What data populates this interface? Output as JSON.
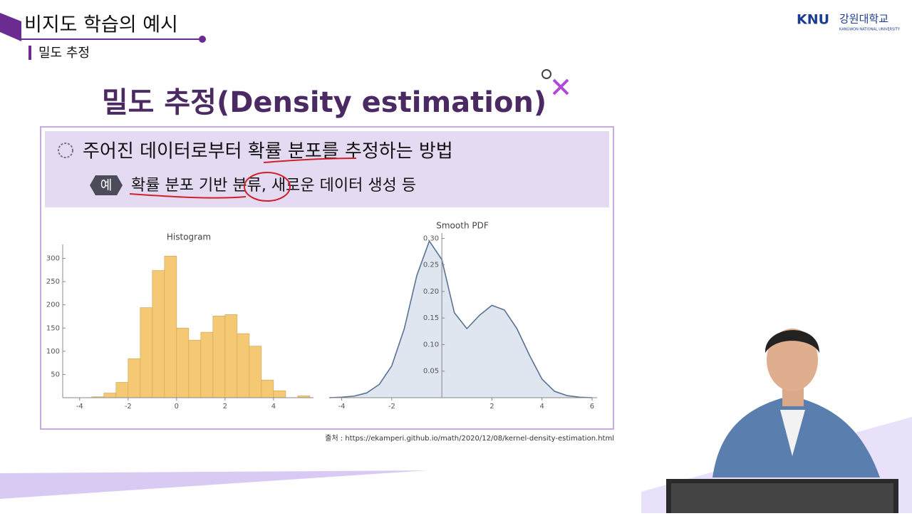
{
  "header": {
    "title": "비지도 학습의 예시",
    "subtitle": "밀도 추정"
  },
  "logo": {
    "mark": "KNU",
    "name": "강원대학교",
    "english": "KANGWON NATIONAL UNIVERSITY"
  },
  "slide": {
    "heading": "밀도 추정(Density estimation)",
    "bullet": "주어진 데이터로부터 확률 분포를 추정하는 방법",
    "example_badge": "예",
    "example": "확률 분포 기반 분류, 새로운 데이터 생성 등",
    "source": "출처 : https://ekamperi.github.io/math/2020/12/08/kernel-density-estimation.html"
  },
  "chart_data": [
    {
      "type": "histogram",
      "title": "Histogram",
      "color": "#f5c873",
      "bins": [
        -3.5,
        -3,
        -2.5,
        -2,
        -1.5,
        -1,
        -0.5,
        0,
        0.5,
        1,
        1.5,
        2,
        2.5,
        3,
        3.5,
        4,
        4.5,
        5,
        5.5
      ],
      "values": [
        2,
        10,
        33,
        84,
        194,
        274,
        305,
        150,
        124,
        141,
        176,
        179,
        138,
        111,
        38,
        15,
        0,
        4
      ],
      "xlim": [
        -4.7,
        5.65
      ],
      "xticks": [
        -4,
        -2,
        0,
        2,
        4
      ],
      "ylim": [
        0,
        330
      ],
      "yticks": [
        50,
        100,
        150,
        200,
        250,
        300
      ]
    },
    {
      "type": "area",
      "title": "Smooth PDF",
      "color": "#5a7295",
      "x": [
        -4.5,
        -4,
        -3.5,
        -3,
        -2.5,
        -2,
        -1.5,
        -1,
        -0.5,
        0,
        0.5,
        1,
        1.5,
        2,
        2.5,
        3,
        3.5,
        4,
        4.5,
        5,
        5.5,
        6
      ],
      "values": [
        0.0,
        0.001,
        0.003,
        0.009,
        0.025,
        0.06,
        0.13,
        0.23,
        0.295,
        0.26,
        0.16,
        0.13,
        0.155,
        0.174,
        0.165,
        0.13,
        0.08,
        0.035,
        0.012,
        0.004,
        0.001,
        0.0
      ],
      "xlim": [
        -4.5,
        6.2
      ],
      "xticks": [
        -4,
        -2,
        2,
        4,
        6
      ],
      "ylim": [
        0,
        0.31
      ],
      "yticks": [
        0.05,
        {
          "value": 0.1,
          "label": "0.10"
        },
        0.15,
        {
          "value": 0.2,
          "label": "0.20"
        },
        0.25,
        {
          "value": 0.3,
          "label": "0.30"
        }
      ]
    }
  ]
}
